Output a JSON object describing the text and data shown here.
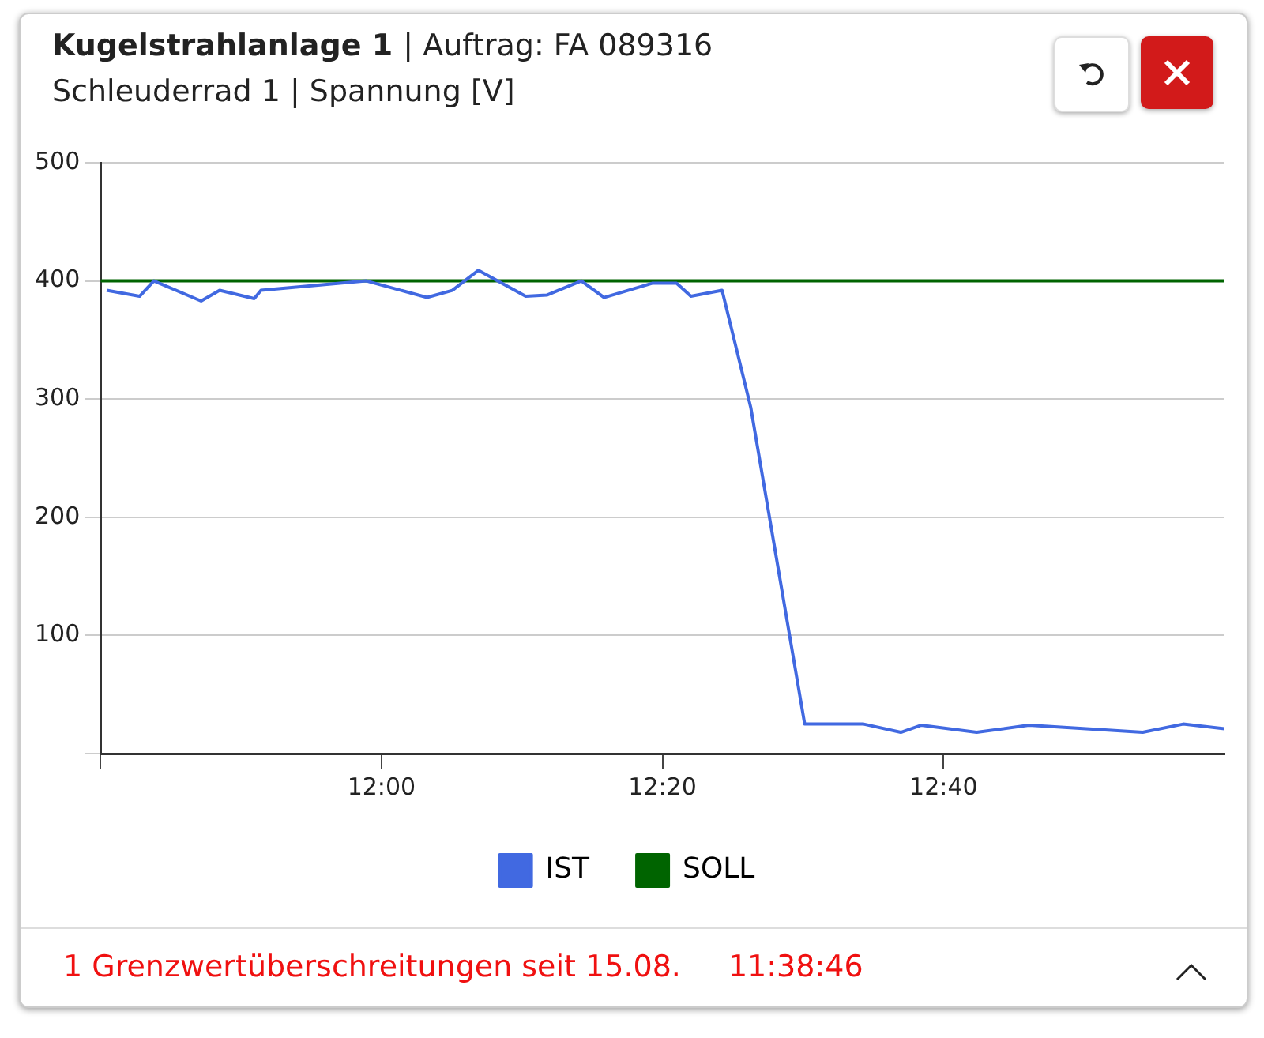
{
  "chart_data": {
    "type": "line",
    "title": "Kugelstrahlanlage 1 | Auftrag: FA 089316",
    "subtitle": "Schleuderrad 1 | Spannung [V]",
    "annotations": [
      "1 Grenzwertüberschreitungen seit 15.08.",
      "11:38:46"
    ],
    "series": [
      {
        "name": "IST",
        "color": "#4169e1",
        "x": [
          11.674,
          11.713,
          11.73,
          11.786,
          11.808,
          11.849,
          11.857,
          11.982,
          12.054,
          12.084,
          12.115,
          12.171,
          12.196,
          12.237,
          12.264,
          12.321,
          12.35,
          12.367,
          12.404,
          12.438,
          12.502,
          12.572,
          12.616,
          12.64,
          12.706,
          12.768,
          12.836,
          12.903,
          12.951,
          13.0
        ],
        "values": [
          392,
          387,
          400,
          383,
          392,
          385,
          392,
          400,
          386,
          392,
          409,
          387,
          388,
          400,
          386,
          398,
          398,
          387,
          392,
          293,
          25,
          25,
          18,
          24,
          18,
          24,
          21,
          18,
          25,
          21
        ]
      },
      {
        "name": "SOLL",
        "color": "#006400",
        "x": [
          11.6667,
          13.0
        ],
        "values": [
          400,
          400
        ]
      }
    ],
    "xlim": [
      11.6667,
      13.0
    ],
    "xticks": [
      {
        "value": 11.6667,
        "label": null
      },
      {
        "value": 12,
        "label": "12:00"
      },
      {
        "value": 12.3333,
        "label": "12:20"
      },
      {
        "value": 12.6667,
        "label": "12:40"
      }
    ],
    "ylim": [
      0,
      500
    ],
    "yticks": [
      {
        "value": 0,
        "label": null
      },
      100,
      200,
      300,
      400,
      500
    ],
    "grid": "y",
    "legend": "bottom",
    "marker": "none",
    "line_style": "solid"
  }
}
